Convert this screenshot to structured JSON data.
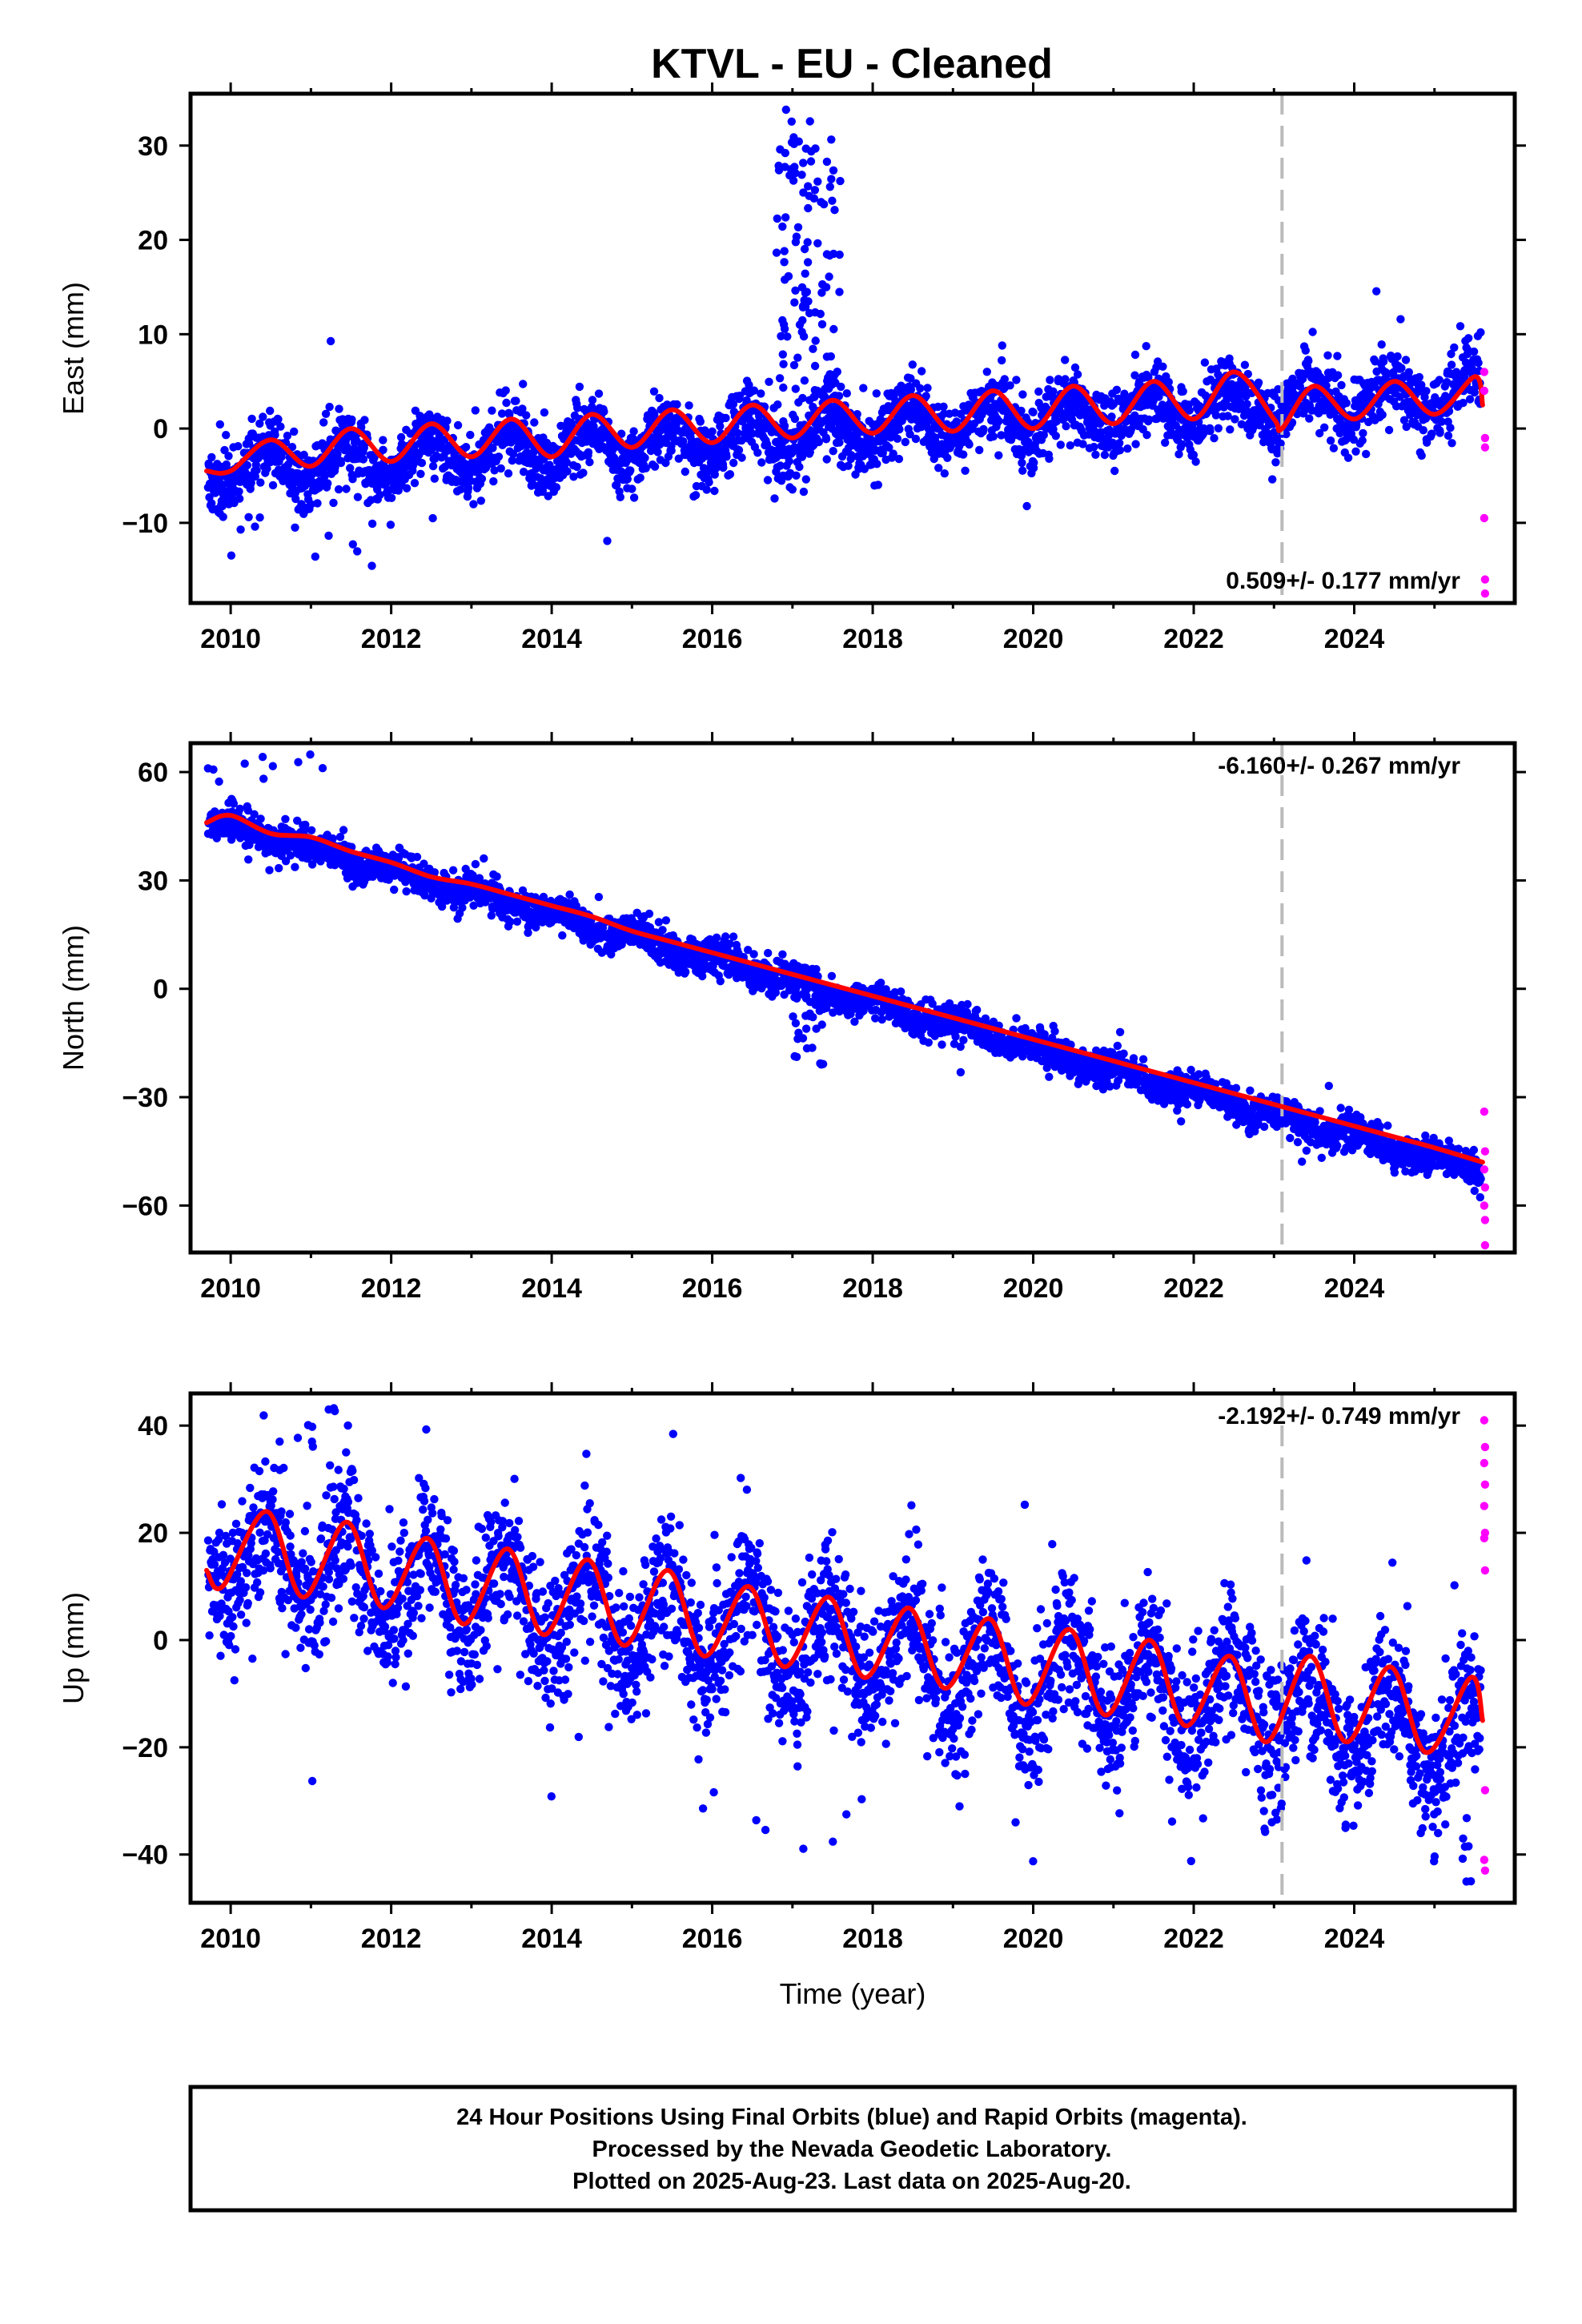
{
  "title": "KTVL  - EU - Cleaned",
  "footer": {
    "lines": [
      "24 Hour Positions Using Final Orbits (blue) and Rapid Orbits (magenta).",
      "Processed by the Nevada Geodetic Laboratory.",
      "Plotted on 2025-Aug-23. Last data on 2025-Aug-20."
    ]
  },
  "chart_data": [
    {
      "type": "scatter",
      "ylabel": "East (mm)",
      "xlabel": "",
      "xlim": [
        2009.5,
        2026.0
      ],
      "ylim": [
        -18.5,
        35.5
      ],
      "xticks": [
        "2010",
        "2012",
        "2014",
        "2016",
        "2018",
        "2020",
        "2022",
        "2024"
      ],
      "yticks": [
        {
          "value": -10,
          "label": "−10"
        },
        {
          "value": 0,
          "label": "0"
        },
        {
          "value": 10,
          "label": "10"
        },
        {
          "value": 20,
          "label": "20"
        },
        {
          "value": 30,
          "label": "30"
        }
      ],
      "rate_text": "0.509+/- 0.177 mm/yr",
      "rate_position": "bottom-right",
      "equipment_change_year": 2023.1,
      "colors": {
        "final": "#0000ff",
        "rapid": "#ff00ff",
        "model": "#ff0000",
        "break_line": "#bbbbbb"
      },
      "model": {
        "trend": [
          [
            2009.7,
            -4.5
          ],
          [
            2010.0,
            -4.5
          ],
          [
            2010.5,
            -1.2
          ],
          [
            2011.0,
            -4.0
          ],
          [
            2011.5,
            0.0
          ],
          [
            2012.0,
            -3.5
          ],
          [
            2012.5,
            0.5
          ],
          [
            2013.0,
            -3.0
          ],
          [
            2013.5,
            1.0
          ],
          [
            2014.0,
            -3.0
          ],
          [
            2014.5,
            1.5
          ],
          [
            2015.0,
            -2.0
          ],
          [
            2015.5,
            2.0
          ],
          [
            2016.0,
            -1.5
          ],
          [
            2016.5,
            2.5
          ],
          [
            2017.0,
            -1.0
          ],
          [
            2017.5,
            3.0
          ],
          [
            2018.0,
            -0.5
          ],
          [
            2018.5,
            3.5
          ],
          [
            2019.0,
            -0.3
          ],
          [
            2019.5,
            4.0
          ],
          [
            2020.0,
            0.0
          ],
          [
            2020.5,
            4.5
          ],
          [
            2021.0,
            0.5
          ],
          [
            2021.5,
            5.0
          ],
          [
            2022.0,
            1.0
          ],
          [
            2022.5,
            6.0
          ],
          [
            2023.0,
            1.0
          ],
          [
            2023.1,
            0.0
          ],
          [
            2023.5,
            4.5
          ],
          [
            2024.0,
            1.0
          ],
          [
            2024.5,
            5.0
          ],
          [
            2025.0,
            1.5
          ],
          [
            2025.5,
            5.5
          ],
          [
            2025.6,
            2.5
          ]
        ]
      },
      "final_scatter": {
        "start": 2009.72,
        "end": 2025.58,
        "mean_start": -4.3,
        "rate": 0.509,
        "annual_amp": 2.0,
        "phase_peak": 0.45,
        "noise": 1.8,
        "n": 3200,
        "seed": 11,
        "bursts": [
          {
            "x0": 2016.8,
            "x1": 2017.6,
            "y0": 2,
            "y1": 34,
            "n": 120
          },
          {
            "x0": 2009.9,
            "x1": 2011.8,
            "y0": -15,
            "y1": -9,
            "n": 12
          }
        ]
      },
      "rapid_points": [
        [
          2025.62,
          6.0
        ],
        [
          2025.62,
          4.0
        ],
        [
          2025.63,
          -1.0
        ],
        [
          2025.63,
          -2.0
        ],
        [
          2025.62,
          -9.5
        ],
        [
          2025.63,
          -16.0
        ],
        [
          2025.63,
          -17.5
        ]
      ]
    },
    {
      "type": "scatter",
      "ylabel": "North (mm)",
      "xlabel": "",
      "xlim": [
        2009.5,
        2026.0
      ],
      "ylim": [
        -73,
        68
      ],
      "xticks": [
        "2010",
        "2012",
        "2014",
        "2016",
        "2018",
        "2020",
        "2022",
        "2024"
      ],
      "yticks": [
        {
          "value": -60,
          "label": "−60"
        },
        {
          "value": -30,
          "label": "−30"
        },
        {
          "value": 0,
          "label": "0"
        },
        {
          "value": 30,
          "label": "30"
        },
        {
          "value": 60,
          "label": "60"
        }
      ],
      "rate_text": "-6.160+/- 0.267 mm/yr",
      "rate_position": "top-right",
      "equipment_change_year": 2023.1,
      "colors": {
        "final": "#0000ff",
        "rapid": "#ff00ff",
        "model": "#ff0000",
        "break_line": "#bbbbbb"
      },
      "model": {
        "trend": [
          [
            2009.7,
            46
          ],
          [
            2010.0,
            48
          ],
          [
            2010.5,
            43
          ],
          [
            2011.0,
            42
          ],
          [
            2011.5,
            38
          ],
          [
            2012.0,
            35
          ],
          [
            2012.5,
            31
          ],
          [
            2013.0,
            29
          ],
          [
            2013.5,
            26
          ],
          [
            2014.0,
            23
          ],
          [
            2014.5,
            20
          ],
          [
            2015.0,
            16
          ],
          [
            2015.5,
            13
          ],
          [
            2016.0,
            10
          ],
          [
            2016.5,
            7
          ],
          [
            2017.0,
            4
          ],
          [
            2017.5,
            1
          ],
          [
            2018.0,
            -2
          ],
          [
            2018.5,
            -5
          ],
          [
            2019.0,
            -8
          ],
          [
            2019.5,
            -11
          ],
          [
            2020.0,
            -14
          ],
          [
            2020.5,
            -17
          ],
          [
            2021.0,
            -20
          ],
          [
            2021.5,
            -23
          ],
          [
            2022.0,
            -26
          ],
          [
            2022.5,
            -29
          ],
          [
            2023.0,
            -32
          ],
          [
            2023.5,
            -35
          ],
          [
            2024.0,
            -38
          ],
          [
            2024.5,
            -41
          ],
          [
            2025.0,
            -44
          ],
          [
            2025.6,
            -48
          ]
        ]
      },
      "final_scatter": {
        "start": 2009.72,
        "end": 2025.58,
        "mean_start": 47,
        "rate": -6.16,
        "annual_amp": 1.5,
        "phase_peak": 0.1,
        "noise": 2.3,
        "n": 3200,
        "seed": 23,
        "bursts": [
          {
            "x0": 2017.0,
            "x1": 2017.4,
            "y0": -22,
            "y1": 6,
            "n": 40
          },
          {
            "x0": 2009.7,
            "x1": 2011.2,
            "y0": 55,
            "y1": 68,
            "n": 10
          }
        ]
      },
      "rapid_points": [
        [
          2025.62,
          -34
        ],
        [
          2025.63,
          -45
        ],
        [
          2025.62,
          -50
        ],
        [
          2025.63,
          -55
        ],
        [
          2025.62,
          -60
        ],
        [
          2025.63,
          -64
        ],
        [
          2025.63,
          -71
        ]
      ]
    },
    {
      "type": "scatter",
      "ylabel": "Up (mm)",
      "xlabel": "Time (year)",
      "xlim": [
        2009.5,
        2026.0
      ],
      "ylim": [
        -49,
        46
      ],
      "xticks": [
        "2010",
        "2012",
        "2014",
        "2016",
        "2018",
        "2020",
        "2022",
        "2024"
      ],
      "yticks": [
        {
          "value": -40,
          "label": "−40"
        },
        {
          "value": -20,
          "label": "−20"
        },
        {
          "value": 0,
          "label": "0"
        },
        {
          "value": 20,
          "label": "20"
        },
        {
          "value": 40,
          "label": "40"
        }
      ],
      "rate_text": "-2.192+/- 0.749 mm/yr",
      "rate_position": "top-right",
      "equipment_change_year": 2023.1,
      "colors": {
        "final": "#0000ff",
        "rapid": "#ff00ff",
        "model": "#ff0000",
        "break_line": "#bbbbbb"
      },
      "model": {
        "trend": [
          [
            2009.7,
            13
          ],
          [
            2009.9,
            10
          ],
          [
            2010.45,
            24
          ],
          [
            2010.9,
            8
          ],
          [
            2011.45,
            22
          ],
          [
            2011.9,
            6
          ],
          [
            2012.45,
            19
          ],
          [
            2012.9,
            3
          ],
          [
            2013.45,
            17
          ],
          [
            2013.9,
            1
          ],
          [
            2014.45,
            15
          ],
          [
            2014.9,
            -1
          ],
          [
            2015.45,
            13
          ],
          [
            2015.9,
            -3
          ],
          [
            2016.45,
            10
          ],
          [
            2016.9,
            -5
          ],
          [
            2017.45,
            8
          ],
          [
            2017.9,
            -7
          ],
          [
            2018.45,
            6
          ],
          [
            2018.9,
            -9
          ],
          [
            2019.45,
            4
          ],
          [
            2019.9,
            -12
          ],
          [
            2020.45,
            2
          ],
          [
            2020.9,
            -14
          ],
          [
            2021.45,
            0
          ],
          [
            2021.9,
            -16
          ],
          [
            2022.45,
            -3
          ],
          [
            2022.9,
            -19
          ],
          [
            2023.45,
            -3
          ],
          [
            2023.9,
            -19
          ],
          [
            2024.45,
            -5
          ],
          [
            2024.9,
            -21
          ],
          [
            2025.45,
            -7
          ],
          [
            2025.6,
            -15
          ]
        ]
      },
      "final_scatter": {
        "start": 2009.72,
        "end": 2025.58,
        "mean_start": 16,
        "rate": -2.192,
        "annual_amp": 8.0,
        "phase_peak": 0.45,
        "noise": 6.5,
        "n": 3200,
        "seed": 37,
        "bursts": [
          {
            "x0": 2010.5,
            "x1": 2011.6,
            "y0": 34,
            "y1": 45,
            "n": 10
          },
          {
            "x0": 2015.7,
            "x1": 2017.9,
            "y0": -41,
            "y1": -22,
            "n": 10
          },
          {
            "x0": 2024.9,
            "x1": 2025.5,
            "y0": -47,
            "y1": -34,
            "n": 8
          }
        ]
      },
      "rapid_points": [
        [
          2025.62,
          41
        ],
        [
          2025.63,
          36
        ],
        [
          2025.62,
          33
        ],
        [
          2025.63,
          29
        ],
        [
          2025.62,
          25
        ],
        [
          2025.63,
          20
        ],
        [
          2025.62,
          19
        ],
        [
          2025.63,
          13
        ],
        [
          2025.63,
          -28
        ],
        [
          2025.62,
          -41
        ],
        [
          2025.63,
          -43
        ]
      ]
    }
  ]
}
